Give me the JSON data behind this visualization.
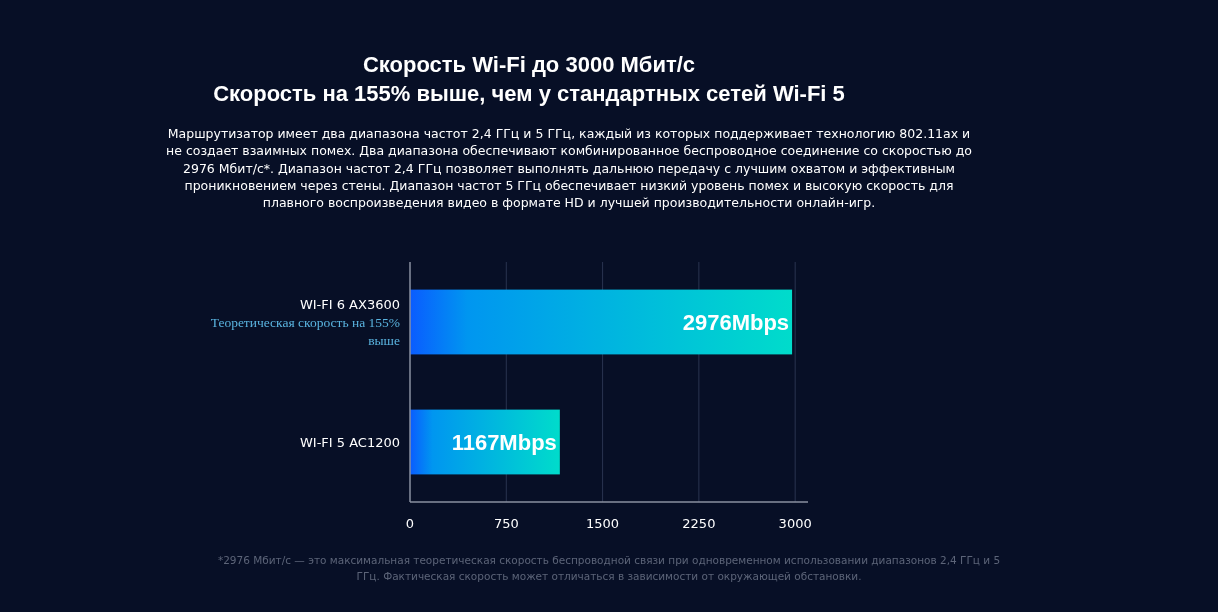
{
  "chart_data": {
    "type": "bar",
    "orientation": "horizontal",
    "title": "Скорость Wi-Fi до 3000 Мбит/с\nСкорость на 155% выше, чем у стандартных сетей Wi-Fi 5",
    "subtitle": "Маршрутизатор имеет два диапазона частот 2,4 ГГц и 5 ГГц, каждый из которых поддерживает технологию 802.11ax и не создает взаимных помех. Два диапазона обеспечивают комбинированное беспроводное соединение со скоростью до 2976 Мбит/с*. Диапазон частот 2,4 ГГц позволяет выполнять дальнюю передачу с лучшим охватом и эффективным проникновением через стены. Диапазон частот 5 ГГц обеспечивает низкий уровень помех и высокую скорость для плавного воспроизведения видео в формате HD и лучшей производительности онлайн-игр.",
    "categories": [
      "WI-FI 6 AX3600",
      "WI-FI 5 AC1200"
    ],
    "values": [
      2976,
      1167
    ],
    "value_labels": [
      "2976Mbps",
      "1167Mbps"
    ],
    "color": "#00dccb",
    "xlim": [
      0,
      3100
    ],
    "xticks": [
      0,
      750,
      1500,
      2250,
      3000
    ],
    "grid": "x",
    "annotations": [
      "Теоретическая скорость на 155% выше",
      "*2976 Мбит/с — это максимальная теоретическая скорость беспроводной связи при одновременном использовании диапазонов 2,4 ГГц и 5 ГГц. Фактическая скорость может отличаться в зависимости от окружающей обстановки."
    ]
  }
}
